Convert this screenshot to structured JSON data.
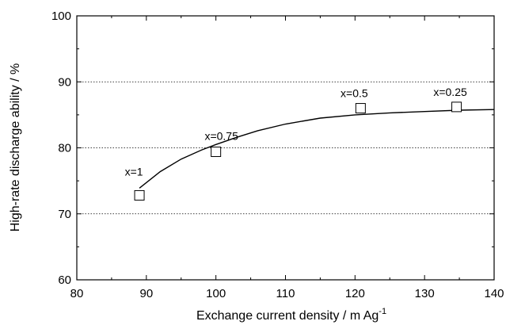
{
  "chart_data": {
    "type": "scatter",
    "title": "",
    "xlabel": "Exchange current density / m Ag",
    "xlabel_superscript": "-1",
    "ylabel": "High-rate discharge ability / %",
    "xlim": [
      80,
      140
    ],
    "ylim": [
      60,
      100
    ],
    "xticks": [
      80,
      90,
      100,
      110,
      120,
      130,
      140
    ],
    "yticks": [
      60,
      70,
      80,
      90,
      100
    ],
    "grid": "horizontal dotted at 70, 80, 90",
    "points": [
      {
        "label": "x=1",
        "x": 89,
        "y": 72.8
      },
      {
        "label": "x=0.75",
        "x": 100,
        "y": 79.4
      },
      {
        "label": "x=0.5",
        "x": 120.8,
        "y": 86.0
      },
      {
        "label": "x=0.25",
        "x": 134.6,
        "y": 86.2
      }
    ],
    "fit_curve": {
      "x": [
        89,
        92,
        95,
        98,
        100,
        103,
        106,
        110,
        115,
        120,
        125,
        130,
        135,
        140
      ],
      "y": [
        73.9,
        76.4,
        78.3,
        79.7,
        80.5,
        81.6,
        82.6,
        83.6,
        84.5,
        85.0,
        85.3,
        85.5,
        85.7,
        85.8
      ]
    }
  }
}
